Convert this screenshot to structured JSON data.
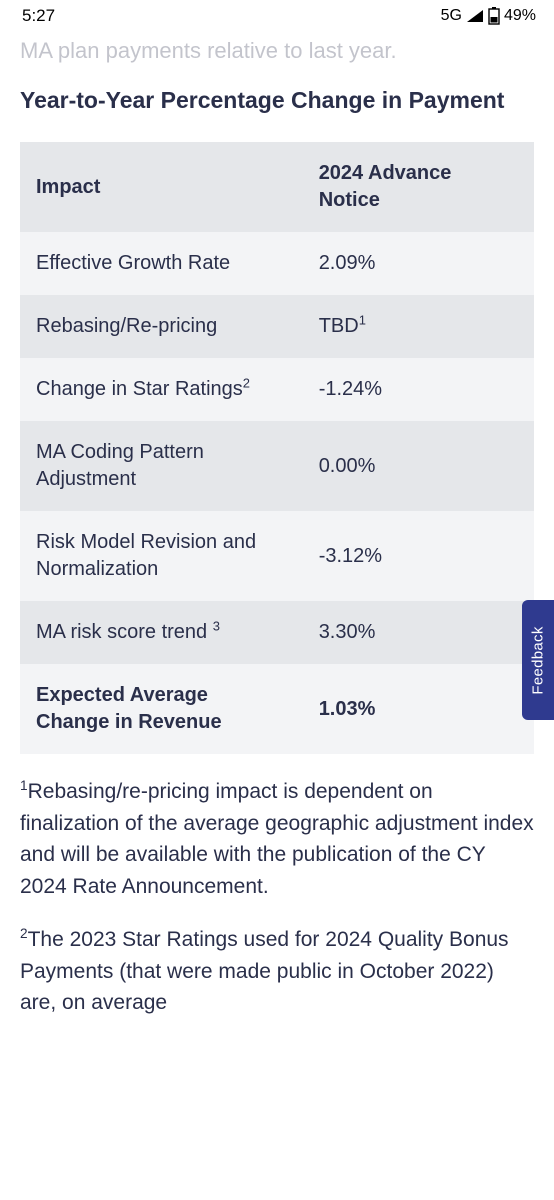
{
  "status_bar": {
    "time": "5:27",
    "network": "5G",
    "battery_pct": "49%"
  },
  "page": {
    "faded_line": "MA plan payments relative to last year.",
    "heading": "Year-to-Year Percentage Change in Payment",
    "table": {
      "columns": [
        "Impact",
        "2024 Advance Notice"
      ],
      "rows": [
        {
          "label": "Effective Growth Rate",
          "sup": "",
          "value": "2.09%",
          "bold": false
        },
        {
          "label": "Rebasing/Re-pricing",
          "sup": "",
          "value": "TBD",
          "value_sup": "1",
          "bold": false
        },
        {
          "label": "Change in Star Ratings",
          "sup": "2",
          "value": "-1.24%",
          "bold": false
        },
        {
          "label": "MA Coding Pattern Adjustment",
          "sup": "",
          "value": "0.00%",
          "bold": false
        },
        {
          "label": "Risk Model Revision and Normalization",
          "sup": "",
          "value": "-3.12%",
          "bold": false
        },
        {
          "label": "MA risk score trend ",
          "sup": "3",
          "value": "3.30%",
          "bold": false
        },
        {
          "label": "Expected Average Change in Revenue",
          "sup": "",
          "value": "1.03%",
          "bold": true
        }
      ]
    },
    "footnotes": [
      {
        "marker": "1",
        "text": "Rebasing/re-pricing impact is dependent on finalization of the average geographic adjustment index and will be available with the publication of the CY 2024 Rate Announcement."
      },
      {
        "marker": "2",
        "text": "The 2023 Star Ratings used for 2024 Quality Bonus Payments (that were made public in October 2022) are, on average"
      }
    ],
    "feedback_label": "Feedback"
  },
  "colors": {
    "text": "#2a2f4a",
    "table_header_bg": "#e5e7ea",
    "row_odd_bg": "#f3f4f6",
    "row_even_bg": "#e5e7ea",
    "feedback_bg": "#2f3a8f",
    "background": "#ffffff"
  }
}
